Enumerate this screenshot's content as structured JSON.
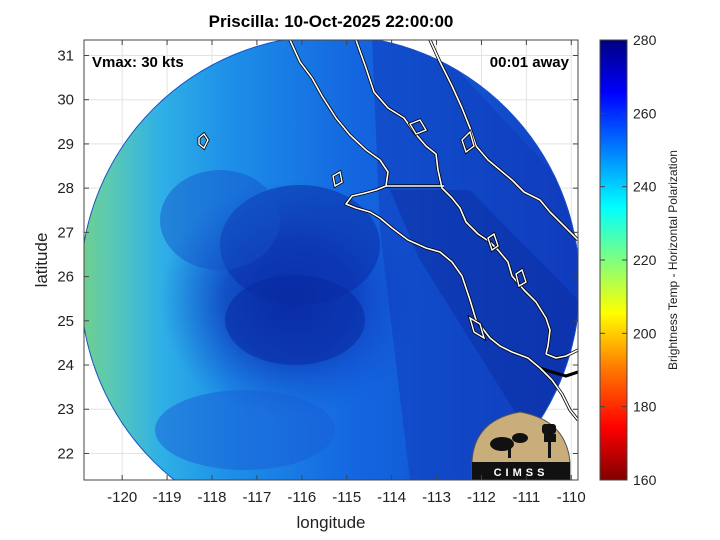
{
  "title": "Priscilla: 10-Oct-2025 22:00:00",
  "vmax_label": "Vmax: 30 kts",
  "time_label": "00:01 away",
  "xlabel": "longitude",
  "ylabel": "latitude",
  "x_ticks": [
    "-120",
    "-119",
    "-118",
    "-117",
    "-116",
    "-115",
    "-114",
    "-113",
    "-112",
    "-111",
    "-110"
  ],
  "y_ticks": [
    "31",
    "30",
    "29",
    "28",
    "27",
    "26",
    "25",
    "24",
    "23",
    "22"
  ],
  "colorbar": {
    "label": "Brightness Temp - Horizontal Polarization",
    "ticks": [
      "280",
      "260",
      "240",
      "220",
      "200",
      "180",
      "160"
    ],
    "range": [
      160,
      280
    ]
  },
  "logo_text": "CIMSS"
}
